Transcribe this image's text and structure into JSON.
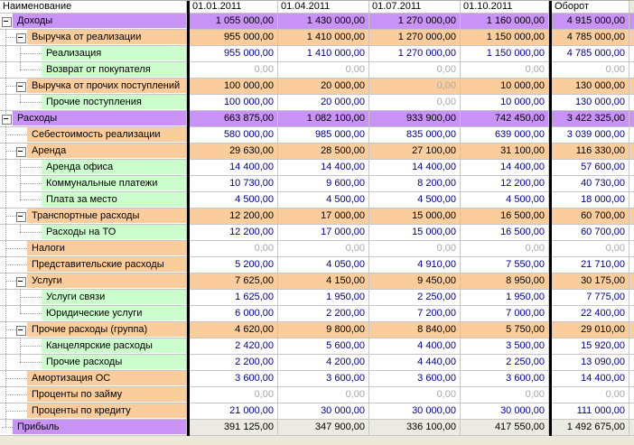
{
  "header": {
    "name": "Наименование",
    "periods": [
      "01.01.2011",
      "01.04.2011",
      "01.07.2011",
      "01.10.2011"
    ],
    "total": "Оборот"
  },
  "colors": {
    "level1_group_bg": "#c892f6",
    "level2_group_bg": "#fbcd9d",
    "level3_leaf_bg": "#ccfdcc",
    "profit_value_bg": "#ebebe3",
    "value_text": "#000090",
    "zero_text": "#a8a8a8",
    "group_value_text": "#000000",
    "column_separator": "#000000"
  },
  "rows": [
    {
      "name": "Доходы",
      "level": 1,
      "group": true,
      "style": "purple-group",
      "values": [
        "1 055 000,00",
        "1 430 000,00",
        "1 270 000,00",
        "1 160 000,00"
      ],
      "total": "4 915 000,00"
    },
    {
      "name": "Выручка от реализации",
      "level": 2,
      "group": true,
      "style": "orange-group",
      "values": [
        "955 000,00",
        "1 410 000,00",
        "1 270 000,00",
        "1 150 000,00"
      ],
      "total": "4 785 000,00"
    },
    {
      "name": "Реализация",
      "level": 3,
      "group": false,
      "style": "green-leaf",
      "values": [
        "955 000,00",
        "1 410 000,00",
        "1 270 000,00",
        "1 150 000,00"
      ],
      "total": "4 785 000,00"
    },
    {
      "name": "Возврат от покупателя",
      "level": 3,
      "group": false,
      "style": "green-leaf",
      "values": [
        "0,00",
        "0,00",
        "0,00",
        "0,00"
      ],
      "total": "0,00"
    },
    {
      "name": "Выручка от прочих поступлений",
      "level": 2,
      "group": true,
      "style": "orange-group",
      "values": [
        "100 000,00",
        "20 000,00",
        "0,00",
        "10 000,00"
      ],
      "total": "130 000,00"
    },
    {
      "name": "Прочие поступления",
      "level": 3,
      "group": false,
      "style": "green-leaf",
      "values": [
        "100 000,00",
        "20 000,00",
        "0,00",
        "10 000,00"
      ],
      "total": "130 000,00"
    },
    {
      "name": "Расходы",
      "level": 1,
      "group": true,
      "style": "purple-group",
      "values": [
        "663 875,00",
        "1 082 100,00",
        "933 900,00",
        "742 450,00"
      ],
      "total": "3 422 325,00"
    },
    {
      "name": "Себестоимость реализации",
      "level": 2,
      "group": false,
      "style": "orange-leaf",
      "values": [
        "580 000,00",
        "985 000,00",
        "835 000,00",
        "639 000,00"
      ],
      "total": "3 039 000,00"
    },
    {
      "name": "Аренда",
      "level": 2,
      "group": true,
      "style": "orange-group",
      "values": [
        "29 630,00",
        "28 500,00",
        "27 100,00",
        "31 100,00"
      ],
      "total": "116 330,00"
    },
    {
      "name": "Аренда офиса",
      "level": 3,
      "group": false,
      "style": "green-leaf",
      "values": [
        "14 400,00",
        "14 400,00",
        "14 400,00",
        "14 400,00"
      ],
      "total": "57 600,00"
    },
    {
      "name": "Коммунальные платежи",
      "level": 3,
      "group": false,
      "style": "green-leaf",
      "values": [
        "10 730,00",
        "9 600,00",
        "8 200,00",
        "12 200,00"
      ],
      "total": "40 730,00"
    },
    {
      "name": "Плата за место",
      "level": 3,
      "group": false,
      "style": "green-leaf",
      "values": [
        "4 500,00",
        "4 500,00",
        "4 500,00",
        "4 500,00"
      ],
      "total": "18 000,00"
    },
    {
      "name": "Транспортные расходы",
      "level": 2,
      "group": true,
      "style": "orange-group",
      "values": [
        "12 200,00",
        "17 000,00",
        "15 000,00",
        "16 500,00"
      ],
      "total": "60 700,00"
    },
    {
      "name": "Расходы на ТО",
      "level": 3,
      "group": false,
      "style": "green-leaf",
      "values": [
        "12 200,00",
        "17 000,00",
        "15 000,00",
        "16 500,00"
      ],
      "total": "60 700,00"
    },
    {
      "name": "Налоги",
      "level": 2,
      "group": false,
      "style": "orange-leaf",
      "values": [
        "0,00",
        "0,00",
        "0,00",
        "0,00"
      ],
      "total": "0,00"
    },
    {
      "name": "Представительские расходы",
      "level": 2,
      "group": false,
      "style": "orange-leaf",
      "values": [
        "5 200,00",
        "4 050,00",
        "4 910,00",
        "7 550,00"
      ],
      "total": "21 710,00"
    },
    {
      "name": "Услуги",
      "level": 2,
      "group": true,
      "style": "orange-group",
      "values": [
        "7 625,00",
        "4 150,00",
        "9 450,00",
        "8 950,00"
      ],
      "total": "30 175,00"
    },
    {
      "name": "Услуги связи",
      "level": 3,
      "group": false,
      "style": "green-leaf",
      "values": [
        "1 625,00",
        "1 950,00",
        "2 250,00",
        "1 950,00"
      ],
      "total": "7 775,00"
    },
    {
      "name": "Юридические услуги",
      "level": 3,
      "group": false,
      "style": "green-leaf",
      "values": [
        "6 000,00",
        "2 200,00",
        "7 200,00",
        "7 000,00"
      ],
      "total": "22 400,00"
    },
    {
      "name": "Прочие расходы (группа)",
      "level": 2,
      "group": true,
      "style": "orange-group",
      "values": [
        "4 620,00",
        "9 800,00",
        "8 840,00",
        "5 750,00"
      ],
      "total": "29 010,00"
    },
    {
      "name": "Канцелярские расходы",
      "level": 3,
      "group": false,
      "style": "green-leaf",
      "values": [
        "2 420,00",
        "5 600,00",
        "4 400,00",
        "3 500,00"
      ],
      "total": "15 920,00"
    },
    {
      "name": "Прочие расходы",
      "level": 3,
      "group": false,
      "style": "green-leaf",
      "values": [
        "2 200,00",
        "4 200,00",
        "4 440,00",
        "2 250,00"
      ],
      "total": "13 090,00"
    },
    {
      "name": "Амортизация ОС",
      "level": 2,
      "group": false,
      "style": "orange-leaf",
      "values": [
        "3 600,00",
        "3 600,00",
        "3 600,00",
        "3 600,00"
      ],
      "total": "14 400,00"
    },
    {
      "name": "Проценты по займу",
      "level": 2,
      "group": false,
      "style": "orange-leaf",
      "values": [
        "0,00",
        "0,00",
        "0,00",
        "0,00"
      ],
      "total": "0,00"
    },
    {
      "name": "Проценты по кредиту",
      "level": 2,
      "group": false,
      "style": "orange-leaf",
      "values": [
        "21 000,00",
        "30 000,00",
        "30 000,00",
        "30 000,00"
      ],
      "total": "111 000,00"
    },
    {
      "name": "Прибыль",
      "level": 1,
      "group": false,
      "style": "profit",
      "values": [
        "391 125,00",
        "347 900,00",
        "336 100,00",
        "417 550,00"
      ],
      "total": "1 492 675,00"
    }
  ]
}
